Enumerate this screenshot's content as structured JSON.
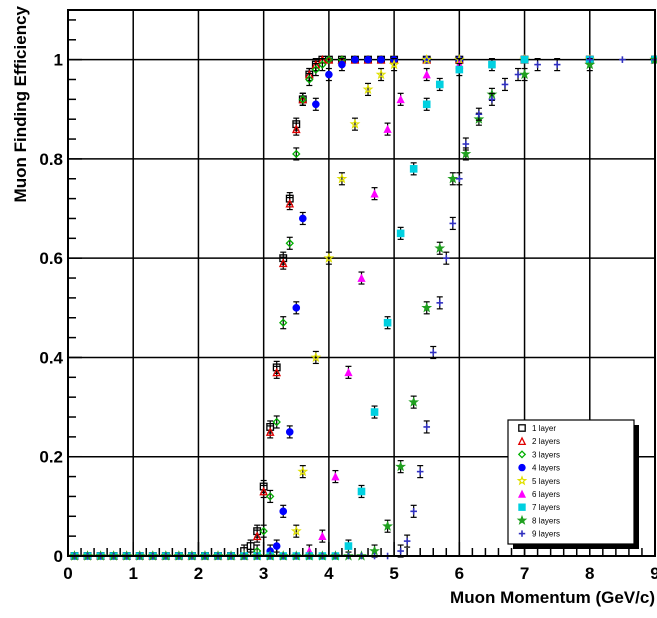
{
  "chart_data": {
    "type": "scatter",
    "title": "",
    "xlabel": "Muon Momentum (GeV/c)",
    "ylabel": "Muon Finding Efficiency",
    "xlim": [
      0,
      9
    ],
    "ylim": [
      0,
      1.1
    ],
    "x_ticks": [
      "0",
      "1",
      "2",
      "3",
      "4",
      "5",
      "6",
      "7",
      "8",
      "9"
    ],
    "y_ticks": [
      "0",
      "0.2",
      "0.4",
      "0.6",
      "0.8",
      "1"
    ],
    "grid": true,
    "legend_position": "bottom-right",
    "series": [
      {
        "name": "1 layer",
        "color": "#000000",
        "marker": "open-square",
        "x": [
          0.1,
          0.3,
          0.5,
          0.7,
          0.9,
          1.1,
          1.3,
          1.5,
          1.7,
          1.9,
          2.1,
          2.3,
          2.5,
          2.7,
          2.8,
          2.9,
          3.0,
          3.1,
          3.2,
          3.3,
          3.4,
          3.5,
          3.6,
          3.7,
          3.8,
          3.9,
          4.0,
          4.2,
          4.4,
          4.6,
          4.8,
          5.0,
          5.5,
          6.0,
          7.0,
          8.0,
          9.0
        ],
        "y": [
          0,
          0,
          0,
          0,
          0,
          0,
          0,
          0,
          0,
          0,
          0,
          0,
          0,
          0.01,
          0.02,
          0.05,
          0.14,
          0.26,
          0.38,
          0.6,
          0.72,
          0.87,
          0.92,
          0.97,
          0.99,
          1.0,
          1.0,
          1.0,
          1.0,
          1.0,
          1.0,
          1.0,
          1.0,
          1.0,
          1.0,
          1.0,
          1.0
        ]
      },
      {
        "name": "2 layers",
        "color": "#e00000",
        "marker": "open-triangle",
        "x": [
          0.1,
          0.3,
          0.5,
          0.7,
          0.9,
          1.1,
          1.3,
          1.5,
          1.7,
          1.9,
          2.1,
          2.3,
          2.5,
          2.7,
          2.9,
          3.0,
          3.1,
          3.2,
          3.3,
          3.4,
          3.5,
          3.6,
          3.7,
          3.8,
          3.9,
          4.0,
          4.2,
          4.4,
          4.6,
          4.8,
          5.0,
          5.5,
          6.0,
          7.0,
          8.0,
          9.0
        ],
        "y": [
          0,
          0,
          0,
          0,
          0,
          0,
          0,
          0,
          0,
          0,
          0,
          0,
          0,
          0,
          0.04,
          0.13,
          0.25,
          0.37,
          0.59,
          0.71,
          0.86,
          0.92,
          0.97,
          0.99,
          1.0,
          1.0,
          1.0,
          1.0,
          1.0,
          1.0,
          1.0,
          1.0,
          1.0,
          1.0,
          1.0,
          1.0
        ]
      },
      {
        "name": "3 layers",
        "color": "#00b000",
        "marker": "open-diamond",
        "x": [
          0.1,
          0.3,
          0.5,
          0.7,
          0.9,
          1.1,
          1.3,
          1.5,
          1.7,
          1.9,
          2.1,
          2.3,
          2.5,
          2.7,
          2.9,
          3.0,
          3.1,
          3.2,
          3.3,
          3.4,
          3.5,
          3.6,
          3.7,
          3.8,
          3.9,
          4.0,
          4.2,
          4.4,
          4.6,
          4.8,
          5.0,
          5.5,
          6.0,
          7.0,
          8.0,
          9.0
        ],
        "y": [
          0,
          0,
          0,
          0,
          0,
          0,
          0,
          0,
          0,
          0,
          0,
          0,
          0,
          0,
          0.01,
          0.05,
          0.12,
          0.27,
          0.47,
          0.63,
          0.81,
          0.92,
          0.96,
          0.98,
          0.99,
          1.0,
          1.0,
          1.0,
          1.0,
          1.0,
          1.0,
          1.0,
          1.0,
          1.0,
          1.0,
          1.0
        ]
      },
      {
        "name": "4 layers",
        "color": "#0000ff",
        "marker": "filled-circle",
        "x": [
          0.1,
          0.3,
          0.5,
          0.7,
          0.9,
          1.1,
          1.3,
          1.5,
          1.7,
          1.9,
          2.1,
          2.3,
          2.5,
          2.7,
          2.9,
          3.1,
          3.2,
          3.3,
          3.4,
          3.5,
          3.6,
          3.8,
          4.0,
          4.2,
          4.4,
          4.6,
          4.8,
          5.0,
          5.5,
          6.0,
          7.0,
          8.0,
          9.0
        ],
        "y": [
          0,
          0,
          0,
          0,
          0,
          0,
          0,
          0,
          0,
          0,
          0,
          0,
          0,
          0,
          0,
          0.01,
          0.02,
          0.09,
          0.25,
          0.5,
          0.68,
          0.91,
          0.97,
          0.99,
          1.0,
          1.0,
          1.0,
          1.0,
          1.0,
          1.0,
          1.0,
          1.0,
          1.0
        ]
      },
      {
        "name": "5 layers",
        "color": "#e0e000",
        "marker": "open-star",
        "x": [
          0.1,
          0.3,
          0.5,
          0.7,
          0.9,
          1.1,
          1.3,
          1.5,
          1.7,
          1.9,
          2.1,
          2.3,
          2.5,
          2.7,
          2.9,
          3.1,
          3.3,
          3.5,
          3.6,
          3.8,
          4.0,
          4.2,
          4.4,
          4.6,
          4.8,
          5.0,
          5.5,
          6.0,
          7.0,
          8.0,
          9.0
        ],
        "y": [
          0,
          0,
          0,
          0,
          0,
          0,
          0,
          0,
          0,
          0,
          0,
          0,
          0,
          0,
          0,
          0,
          0,
          0.05,
          0.17,
          0.4,
          0.6,
          0.76,
          0.87,
          0.94,
          0.97,
          0.99,
          1.0,
          1.0,
          1.0,
          1.0,
          1.0
        ]
      },
      {
        "name": "6 layers",
        "color": "#ff00ff",
        "marker": "filled-triangle",
        "x": [
          0.1,
          0.3,
          0.5,
          0.7,
          0.9,
          1.1,
          1.3,
          1.5,
          1.7,
          1.9,
          2.1,
          2.3,
          2.5,
          2.7,
          2.9,
          3.1,
          3.3,
          3.5,
          3.7,
          3.9,
          4.1,
          4.3,
          4.5,
          4.7,
          4.9,
          5.1,
          5.5,
          6.0,
          7.0,
          8.0,
          9.0
        ],
        "y": [
          0,
          0,
          0,
          0,
          0,
          0,
          0,
          0,
          0,
          0,
          0,
          0,
          0,
          0,
          0,
          0,
          0,
          0,
          0.01,
          0.04,
          0.16,
          0.37,
          0.56,
          0.73,
          0.86,
          0.92,
          0.97,
          0.99,
          1.0,
          1.0,
          1.0
        ]
      },
      {
        "name": "7 layers",
        "color": "#00d0e0",
        "marker": "filled-square",
        "x": [
          0.1,
          0.3,
          0.5,
          0.7,
          0.9,
          1.1,
          1.3,
          1.5,
          1.7,
          1.9,
          2.1,
          2.3,
          2.5,
          2.7,
          2.9,
          3.1,
          3.3,
          3.5,
          3.7,
          3.9,
          4.1,
          4.3,
          4.5,
          4.7,
          4.9,
          5.1,
          5.3,
          5.5,
          5.7,
          6.0,
          6.5,
          7.0,
          8.0,
          9.0
        ],
        "y": [
          0,
          0,
          0,
          0,
          0,
          0,
          0,
          0,
          0,
          0,
          0,
          0,
          0,
          0,
          0,
          0,
          0,
          0,
          0,
          0,
          0,
          0.02,
          0.13,
          0.29,
          0.47,
          0.65,
          0.78,
          0.91,
          0.95,
          0.98,
          0.99,
          1.0,
          1.0,
          1.0
        ]
      },
      {
        "name": "8 layers",
        "color": "#20a020",
        "marker": "filled-star",
        "x": [
          0.1,
          0.3,
          0.5,
          0.7,
          0.9,
          1.1,
          1.3,
          1.5,
          1.7,
          1.9,
          2.1,
          2.3,
          2.5,
          2.7,
          2.9,
          3.1,
          3.3,
          3.5,
          3.7,
          3.9,
          4.1,
          4.3,
          4.5,
          4.7,
          4.9,
          5.1,
          5.3,
          5.5,
          5.7,
          5.9,
          6.1,
          6.3,
          6.5,
          7.0,
          8.0,
          9.0
        ],
        "y": [
          0,
          0,
          0,
          0,
          0,
          0,
          0,
          0,
          0,
          0,
          0,
          0,
          0,
          0,
          0,
          0,
          0,
          0,
          0,
          0,
          0,
          0,
          0,
          0.01,
          0.06,
          0.18,
          0.31,
          0.5,
          0.62,
          0.76,
          0.81,
          0.88,
          0.93,
          0.97,
          0.99,
          1.0
        ]
      },
      {
        "name": "9 layers",
        "color": "#3030c0",
        "marker": "cross",
        "x": [
          0.1,
          0.3,
          0.5,
          0.7,
          0.9,
          1.1,
          1.3,
          1.5,
          1.7,
          1.9,
          2.1,
          2.3,
          2.5,
          2.7,
          2.9,
          3.1,
          3.3,
          3.5,
          3.7,
          3.9,
          4.1,
          4.3,
          4.5,
          4.7,
          4.9,
          5.1,
          5.2,
          5.3,
          5.4,
          5.5,
          5.6,
          5.7,
          5.8,
          5.9,
          6.0,
          6.1,
          6.3,
          6.5,
          6.7,
          6.9,
          7.2,
          7.5,
          8.0,
          8.5,
          9.0
        ],
        "y": [
          0,
          0,
          0,
          0,
          0,
          0,
          0,
          0,
          0,
          0,
          0,
          0,
          0,
          0,
          0,
          0,
          0,
          0,
          0,
          0,
          0,
          0,
          0,
          0,
          0,
          0.01,
          0.03,
          0.09,
          0.17,
          0.26,
          0.41,
          0.51,
          0.6,
          0.67,
          0.76,
          0.83,
          0.89,
          0.92,
          0.95,
          0.97,
          0.99,
          0.99,
          1.0,
          1.0,
          1.0
        ]
      }
    ],
    "legend": [
      "1 layer",
      "2 layers",
      "3 layers",
      "4 layers",
      "5 layers",
      "6 layers",
      "7 layers",
      "8 layers",
      "9 layers"
    ]
  }
}
